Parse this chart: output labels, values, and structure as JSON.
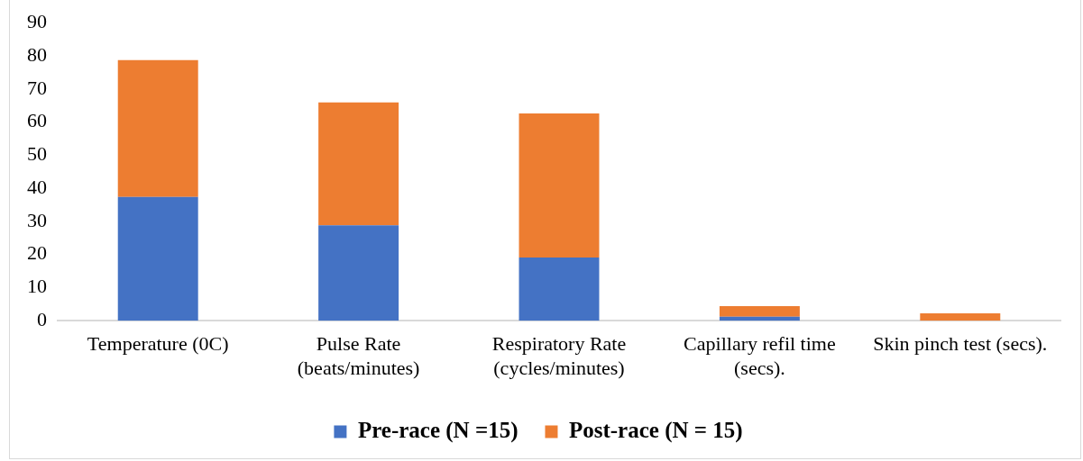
{
  "chart_data": {
    "type": "bar",
    "stacked": true,
    "categories": [
      "Temperature (0C)",
      "Pulse Rate (beats/minutes)",
      "Respiratory Rate (cycles/minutes)",
      "Capillary refil time (secs).",
      "Skin pinch test (secs)."
    ],
    "series": [
      {
        "name": "Pre-race (N =15)",
        "color": "#4472c4",
        "values": [
          37.4,
          28.8,
          19.1,
          1.2,
          0
        ]
      },
      {
        "name": "Post-race (N = 15)",
        "color": "#ed7d31",
        "values": [
          41.3,
          37.1,
          43.5,
          3.2,
          2.2
        ]
      }
    ],
    "ylim": [
      0,
      90
    ],
    "yticks": [
      0,
      10,
      20,
      30,
      40,
      50,
      60,
      70,
      80,
      90
    ],
    "grid": false,
    "legend": "bottom"
  }
}
